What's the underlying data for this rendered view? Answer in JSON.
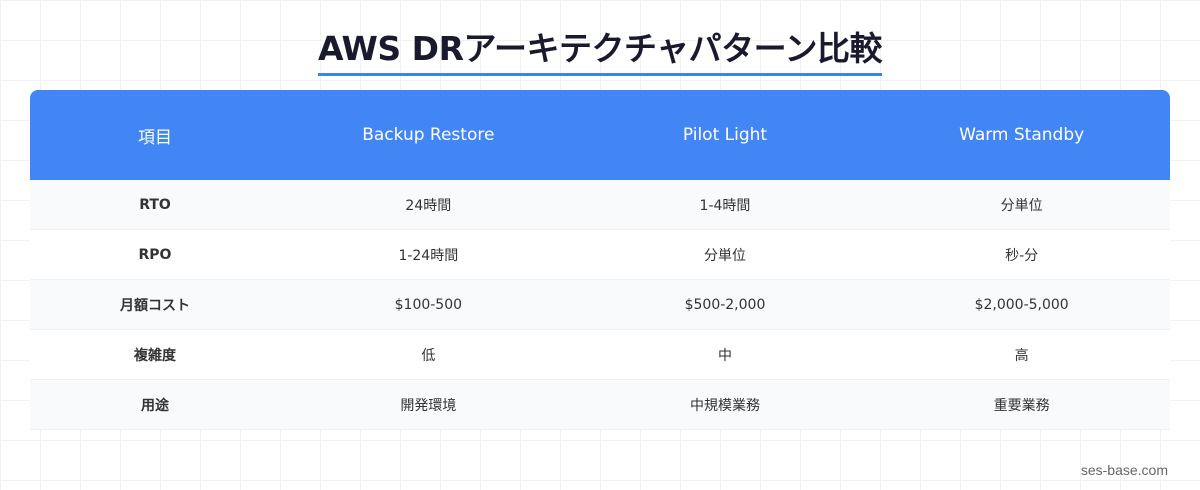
{
  "title": "AWS DRアーキテクチャパターン比較",
  "colors": {
    "accent": "#4285f4",
    "underline": "#3b82f6"
  },
  "table": {
    "headers": [
      "項目",
      "Backup Restore",
      "Pilot Light",
      "Warm Standby"
    ],
    "rows": [
      [
        "RTO",
        "24時間",
        "1-4時間",
        "分単位"
      ],
      [
        "RPO",
        "1-24時間",
        "分単位",
        "秒-分"
      ],
      [
        "月額コスト",
        "$100-500",
        "$500-2,000",
        "$2,000-5,000"
      ],
      [
        "複雑度",
        "低",
        "中",
        "高"
      ],
      [
        "用途",
        "開発環境",
        "中規模業務",
        "重要業務"
      ]
    ]
  },
  "footer": "ses-base.com"
}
